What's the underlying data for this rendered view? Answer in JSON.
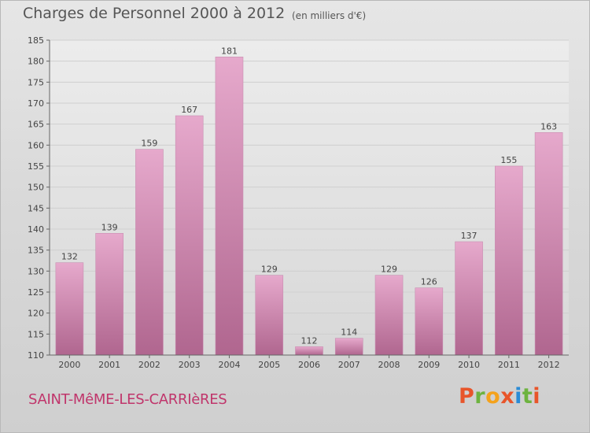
{
  "header": {
    "title": "Charges de Personnel 2000 à 2012",
    "unit": "(en milliers d'€)"
  },
  "footer": {
    "commune": "SAINT-MêME-LES-CARRIèRES",
    "brand_letters": [
      "P",
      "r",
      "o",
      "x",
      "i",
      "t",
      "i"
    ],
    "brand_colors": [
      "#e8552a",
      "#6db33f",
      "#f4a21c",
      "#e8552a",
      "#2a8bd6",
      "#6db33f",
      "#e8552a"
    ]
  },
  "colors": {
    "bar_light": "#e6a9cc",
    "bar_dark": "#b0668f",
    "axis": "#666666",
    "grid": "#cfcfcf"
  },
  "chart_data": {
    "type": "bar",
    "categories": [
      "2000",
      "2001",
      "2002",
      "2003",
      "2004",
      "2005",
      "2006",
      "2007",
      "2008",
      "2009",
      "2010",
      "2011",
      "2012"
    ],
    "values": [
      132,
      139,
      159,
      167,
      181,
      129,
      112,
      114,
      129,
      126,
      137,
      155,
      163
    ],
    "title": "Charges de Personnel 2000 à 2012",
    "xlabel": "",
    "ylabel": "",
    "ylim": [
      110,
      185
    ],
    "yticks": [
      110,
      115,
      120,
      125,
      130,
      135,
      140,
      145,
      150,
      155,
      160,
      165,
      170,
      175,
      180,
      185
    ],
    "grid": true,
    "data_labels": true
  }
}
